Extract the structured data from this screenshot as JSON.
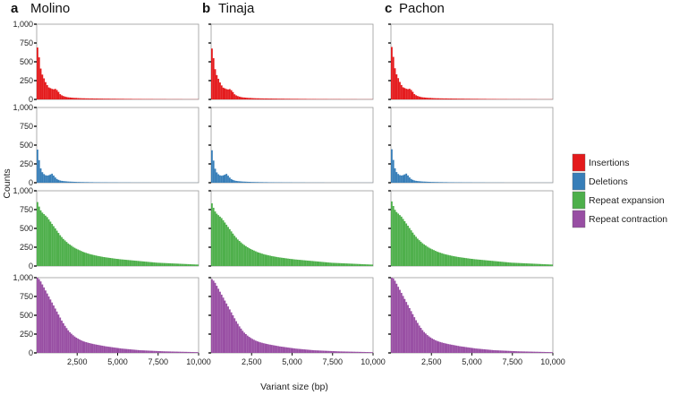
{
  "chart_data": {
    "type": "bar",
    "subtype": "histogram-grid",
    "xlabel": "Variant size (bp)",
    "ylabel": "Counts",
    "xlim": [
      0,
      10000
    ],
    "ylim": [
      0,
      1000
    ],
    "x_ticks": [
      2500,
      5000,
      7500,
      10000
    ],
    "x_tick_labels": [
      "2,500",
      "5,000",
      "7,500",
      "10,000"
    ],
    "y_ticks": [
      0,
      250,
      500,
      750,
      1000
    ],
    "y_tick_labels": [
      "0",
      "250",
      "500",
      "750",
      "1,000"
    ],
    "bin_width": 100,
    "bins_start": 0,
    "panels": [
      {
        "letter": "a",
        "name": "Molino"
      },
      {
        "letter": "b",
        "name": "Tinaja"
      },
      {
        "letter": "c",
        "name": "Pachon"
      }
    ],
    "series": [
      {
        "name": "Insertions",
        "color": "#e41a1c",
        "values": [
          690,
          560,
          410,
          330,
          280,
          230,
          190,
          160,
          150,
          140,
          135,
          140,
          125,
          100,
          70,
          55,
          45,
          38,
          32,
          28,
          26,
          24,
          22,
          20,
          20,
          18,
          17,
          16,
          15,
          15,
          14,
          14,
          13,
          13,
          13,
          12,
          12,
          12,
          11,
          11,
          11,
          10,
          10,
          10,
          10,
          9,
          9,
          9,
          9,
          8,
          8,
          8,
          8,
          8,
          7,
          7,
          7,
          7,
          7,
          6,
          6,
          6,
          6,
          6,
          6,
          5,
          5,
          5,
          5,
          5,
          5,
          5,
          4,
          4,
          4,
          4,
          4,
          4,
          4,
          4,
          3,
          3,
          3,
          3,
          3,
          3,
          3,
          3,
          3,
          3,
          2,
          2,
          2,
          2,
          2,
          2,
          2,
          2,
          2,
          2
        ]
      },
      {
        "name": "Deletions",
        "color": "#377eb8",
        "values": [
          440,
          300,
          190,
          140,
          115,
          100,
          95,
          100,
          110,
          120,
          95,
          70,
          50,
          38,
          30,
          25,
          22,
          20,
          18,
          16,
          15,
          14,
          13,
          12,
          11,
          10,
          10,
          9,
          9,
          8,
          8,
          8,
          7,
          7,
          7,
          6,
          6,
          6,
          6,
          5,
          5,
          5,
          5,
          5,
          4,
          4,
          4,
          4,
          4,
          4,
          3,
          3,
          3,
          3,
          3,
          3,
          3,
          3,
          2,
          2,
          2,
          2,
          2,
          2,
          2,
          2,
          2,
          2,
          2,
          2,
          1,
          1,
          1,
          1,
          1,
          1,
          1,
          1,
          1,
          1,
          1,
          1,
          1,
          1,
          1,
          1,
          1,
          1,
          1,
          1,
          1,
          1,
          1,
          1,
          1,
          1,
          1,
          1,
          1,
          1
        ]
      },
      {
        "name": "Repeat expansion",
        "color": "#4daf4a",
        "values": [
          850,
          790,
          740,
          710,
          690,
          670,
          650,
          620,
          590,
          560,
          530,
          500,
          470,
          440,
          410,
          385,
          360,
          340,
          320,
          300,
          285,
          270,
          255,
          242,
          230,
          220,
          210,
          200,
          190,
          182,
          175,
          168,
          161,
          155,
          150,
          145,
          140,
          135,
          131,
          127,
          123,
          119,
          116,
          113,
          110,
          107,
          104,
          101,
          98,
          95,
          93,
          90,
          88,
          86,
          84,
          82,
          80,
          78,
          76,
          74,
          72,
          70,
          68,
          66,
          64,
          62,
          60,
          58,
          56,
          54,
          52,
          50,
          48,
          46,
          44,
          43,
          42,
          41,
          40,
          39,
          38,
          37,
          36,
          35,
          34,
          33,
          32,
          31,
          30,
          29,
          28,
          27,
          26,
          25,
          24,
          23,
          22,
          21,
          20,
          20
        ]
      },
      {
        "name": "Repeat contraction",
        "color": "#984ea3",
        "values": [
          1000,
          980,
          950,
          910,
          870,
          830,
          790,
          750,
          710,
          670,
          630,
          590,
          550,
          510,
          470,
          430,
          395,
          360,
          330,
          300,
          275,
          255,
          235,
          218,
          203,
          190,
          178,
          167,
          158,
          150,
          143,
          137,
          131,
          126,
          121,
          116,
          112,
          108,
          104,
          100,
          96,
          92,
          88,
          85,
          82,
          79,
          76,
          73,
          70,
          67,
          64,
          61,
          58,
          56,
          54,
          52,
          50,
          48,
          46,
          44,
          42,
          40,
          38,
          36,
          35,
          34,
          33,
          32,
          31,
          30,
          29,
          28,
          27,
          26,
          25,
          24,
          23,
          22,
          21,
          20,
          20,
          19,
          19,
          18,
          18,
          17,
          17,
          16,
          16,
          15,
          15,
          14,
          14,
          13,
          13,
          12,
          12,
          11,
          11,
          10
        ]
      }
    ]
  }
}
